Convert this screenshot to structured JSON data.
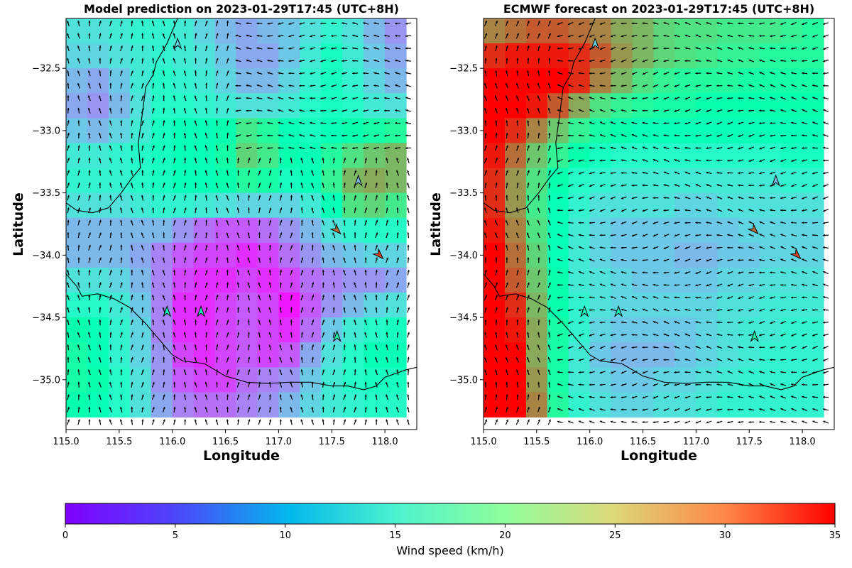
{
  "chart_data": [
    {
      "type": "heatmap",
      "title": "Model prediction on 2023-01-29T17:45 (UTC+8H)",
      "xlabel": "Longitude",
      "ylabel": "Latitude",
      "xlim": [
        115.0,
        118.3
      ],
      "ylim": [
        -35.4,
        -32.1
      ],
      "xticks": [
        "115.0",
        "115.5",
        "116.0",
        "116.5",
        "117.0",
        "117.5",
        "118.0"
      ],
      "yticks": [
        "−32.5",
        "−33.0",
        "−33.5",
        "−34.0",
        "−34.5",
        "−35.0"
      ],
      "grid": false,
      "value_unit": "km/h",
      "row_lats": [
        -32.2,
        -32.4,
        -32.6,
        -32.8,
        -33.0,
        -33.2,
        -33.4,
        -33.6,
        -33.8,
        -34.0,
        -34.2,
        -34.4,
        -34.6,
        -34.8,
        -35.0,
        -35.2
      ],
      "col_lons": [
        115.1,
        115.3,
        115.5,
        115.7,
        115.9,
        116.1,
        116.3,
        116.5,
        116.7,
        116.9,
        117.1,
        117.3,
        117.5,
        117.7,
        117.9,
        118.1
      ],
      "speeds": [
        [
          12,
          12,
          13,
          14,
          14,
          13,
          11,
          9,
          8,
          9,
          10,
          12,
          14,
          12,
          9,
          7
        ],
        [
          11,
          11,
          12,
          13,
          14,
          13,
          12,
          10,
          8,
          8,
          10,
          13,
          16,
          13,
          10,
          8
        ],
        [
          9,
          8,
          10,
          13,
          15,
          14,
          13,
          11,
          9,
          9,
          11,
          14,
          16,
          14,
          11,
          9
        ],
        [
          8,
          7,
          9,
          12,
          15,
          15,
          14,
          13,
          12,
          12,
          13,
          15,
          16,
          15,
          13,
          12
        ],
        [
          10,
          9,
          11,
          13,
          16,
          17,
          17,
          18,
          22,
          20,
          17,
          16,
          17,
          18,
          19,
          20
        ],
        [
          13,
          13,
          14,
          15,
          16,
          17,
          17,
          19,
          24,
          22,
          18,
          17,
          20,
          23,
          25,
          26
        ],
        [
          14,
          14,
          14,
          15,
          16,
          17,
          17,
          18,
          20,
          19,
          16,
          17,
          21,
          26,
          27,
          26
        ],
        [
          12,
          12,
          12,
          13,
          14,
          14,
          13,
          12,
          11,
          11,
          11,
          13,
          17,
          23,
          24,
          22
        ],
        [
          9,
          9,
          9,
          9,
          9,
          7,
          5,
          4,
          4,
          5,
          7,
          9,
          12,
          14,
          15,
          15
        ],
        [
          9,
          9,
          9,
          8,
          6,
          4,
          3,
          3,
          2,
          3,
          5,
          7,
          9,
          10,
          11,
          11
        ],
        [
          12,
          12,
          11,
          9,
          6,
          3,
          2,
          2,
          3,
          2,
          3,
          5,
          6,
          7,
          7,
          8
        ],
        [
          15,
          15,
          13,
          10,
          6,
          2,
          2,
          3,
          4,
          3,
          1,
          4,
          7,
          9,
          11,
          12
        ],
        [
          18,
          17,
          14,
          11,
          6,
          2,
          2,
          3,
          4,
          3,
          2,
          5,
          10,
          13,
          15,
          16
        ],
        [
          19,
          17,
          14,
          11,
          7,
          3,
          2,
          3,
          4,
          3,
          4,
          8,
          12,
          15,
          17,
          17
        ],
        [
          19,
          18,
          15,
          12,
          7,
          4,
          3,
          3,
          5,
          6,
          7,
          10,
          13,
          15,
          16,
          16
        ],
        [
          18,
          17,
          15,
          12,
          8,
          6,
          5,
          5,
          6,
          7,
          9,
          11,
          13,
          14,
          15,
          15
        ]
      ],
      "markers": [
        {
          "lon": 116.05,
          "lat": -32.3,
          "value": 11
        },
        {
          "lon": 117.75,
          "lat": -33.4,
          "value": 9
        },
        {
          "lon": 117.55,
          "lat": -33.8,
          "value": 30
        },
        {
          "lon": 117.95,
          "lat": -34.0,
          "value": 32
        },
        {
          "lon": 115.95,
          "lat": -34.45,
          "value": 16
        },
        {
          "lon": 116.27,
          "lat": -34.45,
          "value": 16
        },
        {
          "lon": 117.55,
          "lat": -34.65,
          "value": 19
        }
      ]
    },
    {
      "type": "heatmap",
      "title": "ECMWF forecast on 2023-01-29T17:45 (UTC+8H)",
      "xlabel": "Longitude",
      "ylabel": "Latitude",
      "xlim": [
        115.0,
        118.3
      ],
      "ylim": [
        -35.4,
        -32.1
      ],
      "xticks": [
        "115.0",
        "115.5",
        "116.0",
        "116.5",
        "117.0",
        "117.5",
        "118.0"
      ],
      "yticks": [
        "−32.5",
        "−33.0",
        "−33.5",
        "−34.0",
        "−34.5",
        "−35.0"
      ],
      "grid": false,
      "value_unit": "km/h",
      "row_lats": [
        -32.2,
        -32.4,
        -32.6,
        -32.8,
        -33.0,
        -33.2,
        -33.4,
        -33.6,
        -33.8,
        -34.0,
        -34.2,
        -34.4,
        -34.6,
        -34.8,
        -35.0,
        -35.2
      ],
      "col_lons": [
        115.1,
        115.3,
        115.5,
        115.7,
        115.9,
        116.1,
        116.3,
        116.5,
        116.7,
        116.9,
        117.1,
        117.3,
        117.5,
        117.7,
        117.9,
        118.1
      ],
      "speeds": [
        [
          29,
          30,
          31,
          31,
          30,
          29,
          27,
          26,
          24,
          23,
          23,
          22,
          22,
          22,
          21,
          20
        ],
        [
          33,
          34,
          34,
          34,
          33,
          31,
          28,
          26,
          24,
          23,
          22,
          21,
          21,
          20,
          20,
          20
        ],
        [
          35,
          35,
          35,
          35,
          33,
          29,
          26,
          23,
          21,
          20,
          20,
          20,
          19,
          19,
          19,
          19
        ],
        [
          35,
          35,
          34,
          31,
          27,
          23,
          21,
          20,
          19,
          19,
          18,
          18,
          18,
          18,
          18,
          18
        ],
        [
          35,
          33,
          29,
          25,
          21,
          19,
          18,
          17,
          17,
          17,
          17,
          17,
          17,
          17,
          17,
          17
        ],
        [
          34,
          30,
          25,
          21,
          18,
          16,
          15,
          15,
          15,
          15,
          15,
          15,
          15,
          15,
          16,
          16
        ],
        [
          33,
          28,
          23,
          18,
          15,
          14,
          13,
          13,
          13,
          13,
          13,
          13,
          13,
          13,
          14,
          14
        ],
        [
          33,
          28,
          22,
          17,
          14,
          12,
          12,
          12,
          12,
          11,
          11,
          12,
          12,
          12,
          12,
          12
        ],
        [
          34,
          29,
          23,
          17,
          13,
          11,
          10,
          10,
          10,
          10,
          10,
          10,
          11,
          11,
          11,
          11
        ],
        [
          35,
          30,
          24,
          17,
          13,
          11,
          10,
          10,
          10,
          9,
          9,
          10,
          10,
          11,
          11,
          11
        ],
        [
          35,
          31,
          25,
          18,
          13,
          12,
          11,
          10,
          10,
          10,
          10,
          11,
          11,
          12,
          12,
          12
        ],
        [
          35,
          33,
          26,
          18,
          14,
          12,
          11,
          11,
          11,
          11,
          11,
          12,
          12,
          13,
          13,
          13
        ],
        [
          35,
          34,
          27,
          19,
          14,
          11,
          10,
          10,
          10,
          10,
          11,
          12,
          13,
          13,
          14,
          14
        ],
        [
          35,
          35,
          27,
          19,
          13,
          10,
          9,
          9,
          9,
          10,
          11,
          12,
          13,
          14,
          14,
          14
        ],
        [
          35,
          35,
          28,
          19,
          13,
          11,
          10,
          10,
          11,
          11,
          12,
          13,
          14,
          14,
          14,
          14
        ],
        [
          35,
          35,
          29,
          20,
          14,
          12,
          11,
          11,
          12,
          12,
          13,
          14,
          14,
          14,
          14,
          14
        ]
      ],
      "markers": [
        {
          "lon": 116.05,
          "lat": -32.3,
          "value": 11
        },
        {
          "lon": 117.75,
          "lat": -33.4,
          "value": 9
        },
        {
          "lon": 117.55,
          "lat": -33.8,
          "value": 30
        },
        {
          "lon": 117.95,
          "lat": -34.0,
          "value": 32
        },
        {
          "lon": 115.95,
          "lat": -34.45,
          "value": 16
        },
        {
          "lon": 116.27,
          "lat": -34.45,
          "value": 16
        },
        {
          "lon": 117.55,
          "lat": -34.65,
          "value": 19
        }
      ]
    }
  ],
  "colorbar": {
    "label": "Wind speed (km/h)",
    "range": [
      0,
      35
    ],
    "ticks": [
      "0",
      "5",
      "10",
      "15",
      "20",
      "25",
      "30",
      "35"
    ],
    "colormap": "rainbow"
  }
}
